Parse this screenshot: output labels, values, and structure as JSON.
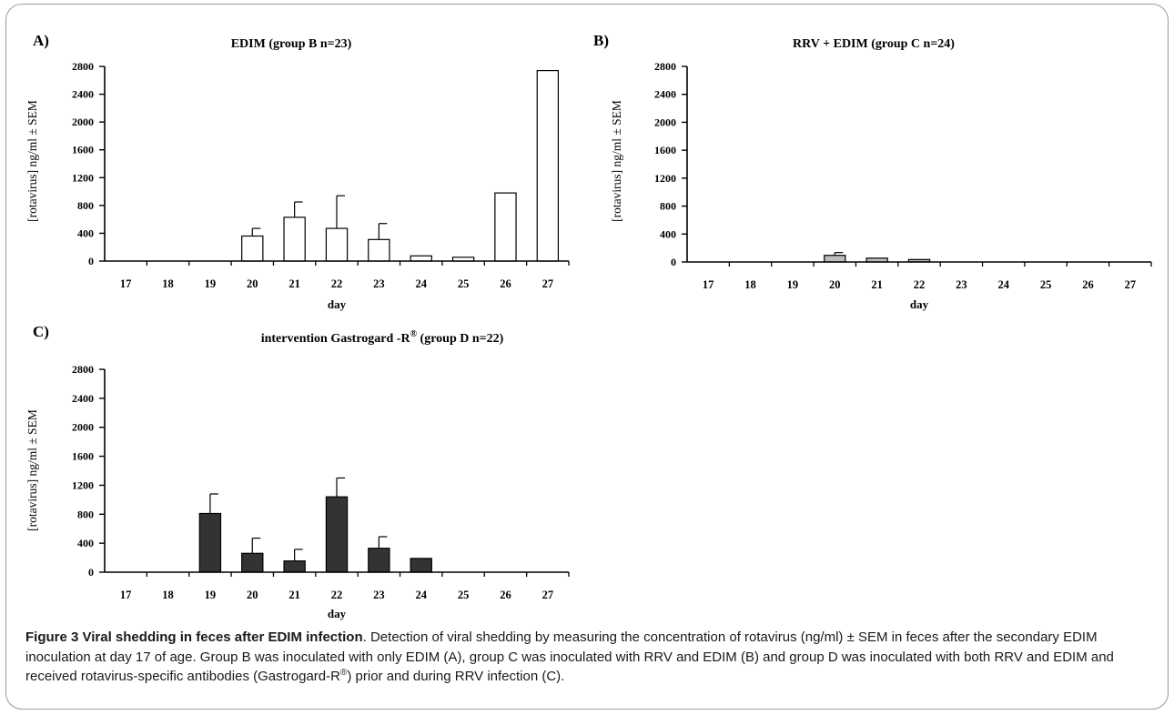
{
  "colors": {
    "group_b_fill": "#ffffff",
    "group_c_fill": "#bdbdbd",
    "group_d_fill": "#333333",
    "stroke": "#000000"
  },
  "chart_data": [
    {
      "type": "bar",
      "panel_label": "A)",
      "title": "EDIM  (group B  n=23)",
      "xlabel": "day",
      "ylabel": "[rotavirus] ng/ml ± SEM",
      "categories": [
        "17",
        "18",
        "19",
        "20",
        "21",
        "22",
        "23",
        "24",
        "25",
        "26",
        "27"
      ],
      "y_ticks": [
        "0",
        "400",
        "800",
        "1200",
        "1600",
        "2000",
        "2400",
        "2800"
      ],
      "ylim": [
        0,
        2800
      ],
      "values": [
        0,
        0,
        0,
        360,
        630,
        470,
        310,
        75,
        55,
        980,
        2740
      ],
      "errors": [
        0,
        0,
        0,
        110,
        220,
        470,
        230,
        0,
        0,
        0,
        0
      ],
      "fill": "white",
      "grid": false
    },
    {
      "type": "bar",
      "panel_label": "B)",
      "title": "RRV + EDIM (group C  n=24)",
      "xlabel": "day",
      "ylabel": "[rotavirus] ng/ml ± SEM",
      "categories": [
        "17",
        "18",
        "19",
        "20",
        "21",
        "22",
        "23",
        "24",
        "25",
        "26",
        "27"
      ],
      "y_ticks": [
        "0",
        "400",
        "800",
        "1200",
        "1600",
        "2000",
        "2400",
        "2800"
      ],
      "ylim": [
        0,
        2800
      ],
      "values": [
        0,
        0,
        0,
        95,
        55,
        35,
        0,
        0,
        0,
        0,
        0
      ],
      "errors": [
        0,
        0,
        0,
        40,
        0,
        0,
        0,
        0,
        0,
        0,
        0
      ],
      "fill": "grey",
      "grid": false
    },
    {
      "type": "bar",
      "panel_label": "C)",
      "title_pre": "intervention Gastrogard -R",
      "title_sup": "®",
      "title_post": " (group D  n=22)",
      "xlabel": "day",
      "ylabel": "[rotavirus] ng/ml ± SEM",
      "categories": [
        "17",
        "18",
        "19",
        "20",
        "21",
        "22",
        "23",
        "24",
        "25",
        "26",
        "27"
      ],
      "y_ticks": [
        "0",
        "400",
        "800",
        "1200",
        "1600",
        "2000",
        "2400",
        "2800"
      ],
      "ylim": [
        0,
        2800
      ],
      "values": [
        0,
        0,
        810,
        260,
        155,
        1040,
        330,
        190,
        0,
        0,
        0
      ],
      "errors": [
        0,
        0,
        270,
        210,
        160,
        260,
        160,
        0,
        0,
        0,
        0
      ],
      "fill": "dark",
      "grid": false
    }
  ],
  "caption": {
    "title": "Figure 3 Viral shedding in feces after EDIM infection",
    "text_1": ". Detection of viral shedding by measuring the concentration of rotavirus (ng/ml) ± SEM in feces after the secondary EDIM inoculation at day 17 of age. Group B was inoculated with only EDIM (A), group C was inoculated with RRV and EDIM (B) and group D was inoculated with both RRV and EDIM and received rotavirus-specific antibodies (Gastrogard-R",
    "sup": "®",
    "text_2": ") prior and during RRV infection (C)."
  }
}
